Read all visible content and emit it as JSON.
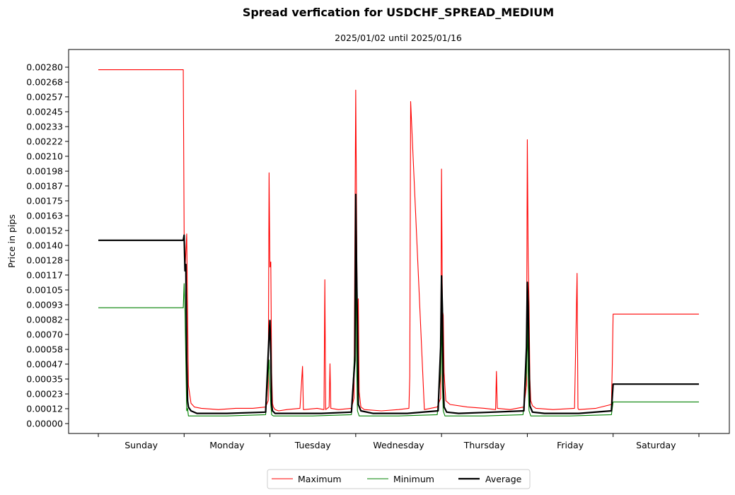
{
  "chart_data": {
    "type": "line",
    "title": "Spread verfication for USDCHF_SPREAD_MEDIUM",
    "subtitle": "2025/01/02 until 2025/01/16",
    "xlabel": "",
    "ylabel": "Price in pips",
    "xlim": [
      0,
      7
    ],
    "ylim": [
      -8e-05,
      0.0029
    ],
    "y_ticks": [
      {
        "value": 0.0,
        "label": "0.00000"
      },
      {
        "value": 0.000117,
        "label": "0.00012"
      },
      {
        "value": 0.000233,
        "label": "0.00023"
      },
      {
        "value": 0.00035,
        "label": "0.00035"
      },
      {
        "value": 0.000467,
        "label": "0.00047"
      },
      {
        "value": 0.000583,
        "label": "0.00058"
      },
      {
        "value": 0.0007,
        "label": "0.00070"
      },
      {
        "value": 0.000817,
        "label": "0.00082"
      },
      {
        "value": 0.000933,
        "label": "0.00093"
      },
      {
        "value": 0.00105,
        "label": "0.00105"
      },
      {
        "value": 0.001167,
        "label": "0.00117"
      },
      {
        "value": 0.001283,
        "label": "0.00128"
      },
      {
        "value": 0.0014,
        "label": "0.00140"
      },
      {
        "value": 0.001517,
        "label": "0.00152"
      },
      {
        "value": 0.001633,
        "label": "0.00163"
      },
      {
        "value": 0.00175,
        "label": "0.00175"
      },
      {
        "value": 0.001867,
        "label": "0.00187"
      },
      {
        "value": 0.001983,
        "label": "0.00198"
      },
      {
        "value": 0.0021,
        "label": "0.00210"
      },
      {
        "value": 0.002217,
        "label": "0.00222"
      },
      {
        "value": 0.002333,
        "label": "0.00233"
      },
      {
        "value": 0.00245,
        "label": "0.00245"
      },
      {
        "value": 0.002567,
        "label": "0.00257"
      },
      {
        "value": 0.002683,
        "label": "0.00268"
      },
      {
        "value": 0.0028,
        "label": "0.00280"
      }
    ],
    "x_tick_values": [
      0,
      1,
      2,
      3,
      4,
      5,
      6,
      7
    ],
    "categories": [
      "Sunday",
      "Monday",
      "Tuesday",
      "Wednesday",
      "Thursday",
      "Friday",
      "Saturday"
    ],
    "legend_position": "bottom-center",
    "series": [
      {
        "name": "Maximum",
        "color": "#ff0000",
        "line_width": 1,
        "x": [
          0,
          0.99,
          1.0,
          1.01,
          1.03,
          1.05,
          1.08,
          1.12,
          1.2,
          1.4,
          1.6,
          1.8,
          1.95,
          1.98,
          1.99,
          2.0,
          2.01,
          2.02,
          2.03,
          2.04,
          2.06,
          2.1,
          2.2,
          2.35,
          2.38,
          2.39,
          2.4,
          2.55,
          2.63,
          2.64,
          2.65,
          2.69,
          2.7,
          2.71,
          2.8,
          2.95,
          2.98,
          3.0,
          3.01,
          3.02,
          3.03,
          3.04,
          3.06,
          3.1,
          3.3,
          3.5,
          3.62,
          3.63,
          3.64,
          3.8,
          3.95,
          3.99,
          4.0,
          4.01,
          4.02,
          4.03,
          4.05,
          4.1,
          4.3,
          4.5,
          4.63,
          4.64,
          4.65,
          4.8,
          4.96,
          4.99,
          5.0,
          5.01,
          5.02,
          5.03,
          5.04,
          5.06,
          5.1,
          5.3,
          5.55,
          5.58,
          5.59,
          5.6,
          5.8,
          5.98,
          5.99,
          6.0,
          7.0
        ],
        "y": [
          0.00278,
          0.00278,
          0.0015,
          0.0012,
          0.00149,
          0.0003,
          0.00016,
          0.00013,
          0.00012,
          0.00011,
          0.00012,
          0.00012,
          0.00013,
          0.00018,
          0.00197,
          0.00123,
          0.00127,
          0.0004,
          0.00016,
          0.00013,
          0.00011,
          0.0001,
          0.00011,
          0.00012,
          0.00045,
          0.00011,
          0.00011,
          0.00012,
          0.00011,
          0.00113,
          0.00011,
          0.00013,
          0.00047,
          0.00012,
          0.00011,
          0.00012,
          0.0002,
          0.00262,
          0.00165,
          0.0006,
          0.00098,
          0.00025,
          0.00013,
          0.00011,
          0.0001,
          0.00011,
          0.00012,
          0.00037,
          0.00253,
          0.00011,
          0.00013,
          0.0002,
          0.002,
          0.0009,
          0.00085,
          0.0004,
          0.00018,
          0.00015,
          0.00013,
          0.00012,
          0.00011,
          0.00041,
          0.00012,
          0.00011,
          0.00013,
          0.0003,
          0.00223,
          0.0013,
          0.00095,
          0.00035,
          0.00018,
          0.00014,
          0.00012,
          0.00011,
          0.00012,
          0.00118,
          0.00012,
          0.00011,
          0.00012,
          0.00015,
          0.00045,
          0.00086,
          0.00086
        ]
      },
      {
        "name": "Minimum",
        "color": "#008000",
        "line_width": 1,
        "x": [
          0,
          0.99,
          1.0,
          1.01,
          1.03,
          1.04,
          1.05,
          1.1,
          1.5,
          1.95,
          1.99,
          2.0,
          2.01,
          2.02,
          2.04,
          2.1,
          2.5,
          2.95,
          2.99,
          3.0,
          3.01,
          3.02,
          3.04,
          3.1,
          3.5,
          3.95,
          3.99,
          4.0,
          4.01,
          4.02,
          4.04,
          4.1,
          4.5,
          4.95,
          4.99,
          5.0,
          5.01,
          5.02,
          5.04,
          5.1,
          5.5,
          5.98,
          6.0,
          7.0
        ],
        "y": [
          0.00091,
          0.00091,
          0.0011,
          0.00088,
          0.0001,
          0.00012,
          6e-05,
          6e-05,
          6e-05,
          7e-05,
          0.0005,
          0.0003,
          0.00015,
          7e-05,
          6e-05,
          6e-05,
          6e-05,
          7e-05,
          0.0006,
          0.0015,
          0.0005,
          0.0001,
          6e-05,
          6e-05,
          6e-05,
          7e-05,
          0.0004,
          0.00085,
          0.0003,
          0.0001,
          6e-05,
          6e-05,
          6e-05,
          7e-05,
          0.0004,
          0.0008,
          0.00035,
          0.0001,
          6e-05,
          6e-05,
          6e-05,
          7e-05,
          0.00017,
          0.00017
        ]
      },
      {
        "name": "Average",
        "color": "#000000",
        "line_width": 2,
        "x": [
          0,
          0.99,
          1.0,
          1.01,
          1.02,
          1.03,
          1.04,
          1.05,
          1.08,
          1.15,
          1.5,
          1.95,
          1.99,
          2.0,
          2.01,
          2.02,
          2.03,
          2.06,
          2.2,
          2.6,
          2.95,
          2.99,
          3.0,
          3.01,
          3.02,
          3.03,
          3.06,
          3.2,
          3.6,
          3.96,
          3.99,
          4.0,
          4.01,
          4.02,
          4.03,
          4.06,
          4.2,
          4.6,
          4.96,
          4.99,
          5.0,
          5.01,
          5.02,
          5.03,
          5.06,
          5.2,
          5.6,
          5.98,
          6.0,
          7.0
        ],
        "y": [
          0.00144,
          0.00144,
          0.00148,
          0.0012,
          0.00125,
          0.0005,
          0.00018,
          0.00013,
          0.0001,
          8e-05,
          8e-05,
          9e-05,
          0.0007,
          0.00081,
          0.00055,
          0.00015,
          0.0001,
          8e-05,
          8e-05,
          8e-05,
          9e-05,
          0.0005,
          0.0018,
          0.0012,
          0.00077,
          0.00015,
          0.0001,
          8e-05,
          8e-05,
          0.0001,
          0.0006,
          0.00116,
          0.0009,
          0.0003,
          0.00013,
          9e-05,
          8e-05,
          9e-05,
          0.0001,
          0.0006,
          0.00111,
          0.00092,
          0.0005,
          0.00014,
          9e-05,
          8e-05,
          8e-05,
          0.0001,
          0.00031,
          0.00031
        ]
      }
    ]
  }
}
